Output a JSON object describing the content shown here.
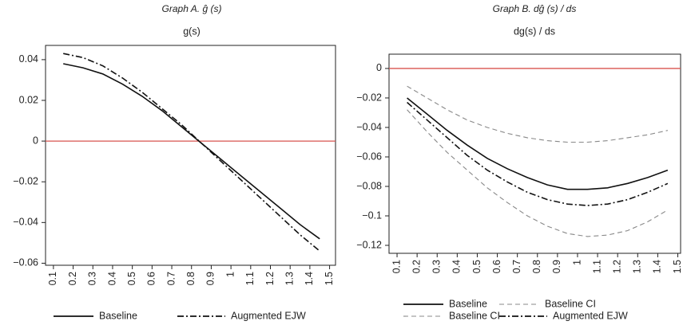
{
  "chart_data": [
    {
      "type": "line",
      "title": "Graph A. ĝ (s)",
      "subtitle": "g(s)",
      "x": [
        0.15,
        0.25,
        0.35,
        0.45,
        0.55,
        0.65,
        0.75,
        0.85,
        0.95,
        1.05,
        1.15,
        1.25,
        1.35,
        1.45
      ],
      "series": [
        {
          "name": "Baseline",
          "color": "#111111",
          "dash": "solid",
          "values": [
            0.038,
            0.036,
            0.033,
            0.028,
            0.022,
            0.015,
            0.007,
            -0.001,
            -0.009,
            -0.017,
            -0.025,
            -0.033,
            -0.041,
            -0.048
          ]
        },
        {
          "name": "Augmented EJW",
          "color": "#111111",
          "dash": "dashdot",
          "values": [
            0.043,
            0.041,
            0.037,
            0.031,
            0.024,
            0.016,
            0.008,
            -0.001,
            -0.01,
            -0.019,
            -0.028,
            -0.037,
            -0.046,
            -0.054
          ]
        }
      ],
      "xlim": [
        0.06,
        1.53
      ],
      "ylim": [
        -0.061,
        0.047
      ],
      "xticks": [
        0.1,
        0.2,
        0.3,
        0.4,
        0.5,
        0.6,
        0.7,
        0.8,
        0.9,
        1,
        1.1,
        1.2,
        1.3,
        1.4,
        1.5
      ],
      "yticks": [
        0.04,
        0.02,
        0,
        {
          "value": -0.02,
          "label": "−0.02"
        },
        {
          "value": -0.04,
          "label": "−0.04"
        },
        {
          "value": -0.06,
          "label": "−0.06"
        }
      ],
      "hline": 0,
      "hline_color": "#d9534f"
    },
    {
      "type": "line",
      "title": "Graph B. dĝ (s) / ds",
      "subtitle": "dg(s) / ds",
      "x": [
        0.15,
        0.25,
        0.35,
        0.45,
        0.55,
        0.65,
        0.75,
        0.85,
        0.95,
        1.05,
        1.15,
        1.25,
        1.35,
        1.45
      ],
      "series": [
        {
          "name": "Baseline",
          "color": "#111111",
          "dash": "solid",
          "values": [
            -0.02,
            -0.031,
            -0.042,
            -0.052,
            -0.061,
            -0.068,
            -0.074,
            -0.079,
            -0.082,
            -0.082,
            -0.081,
            -0.078,
            -0.074,
            -0.069
          ]
        },
        {
          "name": "Baseline CI",
          "color": "#888888",
          "dash": "dash",
          "values": [
            -0.012,
            -0.02,
            -0.028,
            -0.035,
            -0.04,
            -0.044,
            -0.047,
            -0.049,
            -0.05,
            -0.05,
            -0.049,
            -0.047,
            -0.045,
            -0.042
          ]
        },
        {
          "name": "Baseline CI",
          "color": "#888888",
          "dash": "dash",
          "values": [
            -0.028,
            -0.043,
            -0.057,
            -0.069,
            -0.081,
            -0.091,
            -0.1,
            -0.107,
            -0.112,
            -0.114,
            -0.113,
            -0.11,
            -0.104,
            -0.096
          ]
        },
        {
          "name": "Augmented EJW",
          "color": "#111111",
          "dash": "dashdot",
          "values": [
            -0.023,
            -0.035,
            -0.047,
            -0.059,
            -0.069,
            -0.077,
            -0.084,
            -0.089,
            -0.092,
            -0.093,
            -0.092,
            -0.089,
            -0.084,
            -0.078
          ]
        }
      ],
      "xlim": [
        0.06,
        1.514
      ],
      "ylim": [
        -0.1254,
        0.0097
      ],
      "xticks": [
        0.1,
        0.2,
        0.3,
        0.4,
        0.5,
        0.6,
        0.7,
        0.8,
        0.9,
        1,
        1.1,
        1.2,
        1.3,
        1.4,
        1.5
      ],
      "yticks": [
        0,
        {
          "value": -0.02,
          "label": "−0.02"
        },
        {
          "value": -0.04,
          "label": "−0.04"
        },
        {
          "value": -0.06,
          "label": "−0.06"
        },
        {
          "value": -0.08,
          "label": "−0.08"
        },
        {
          "value": -0.1,
          "label": "−0.1"
        },
        {
          "value": -0.12,
          "label": "−0.12"
        }
      ],
      "hline": 0,
      "hline_color": "#d9534f"
    }
  ]
}
